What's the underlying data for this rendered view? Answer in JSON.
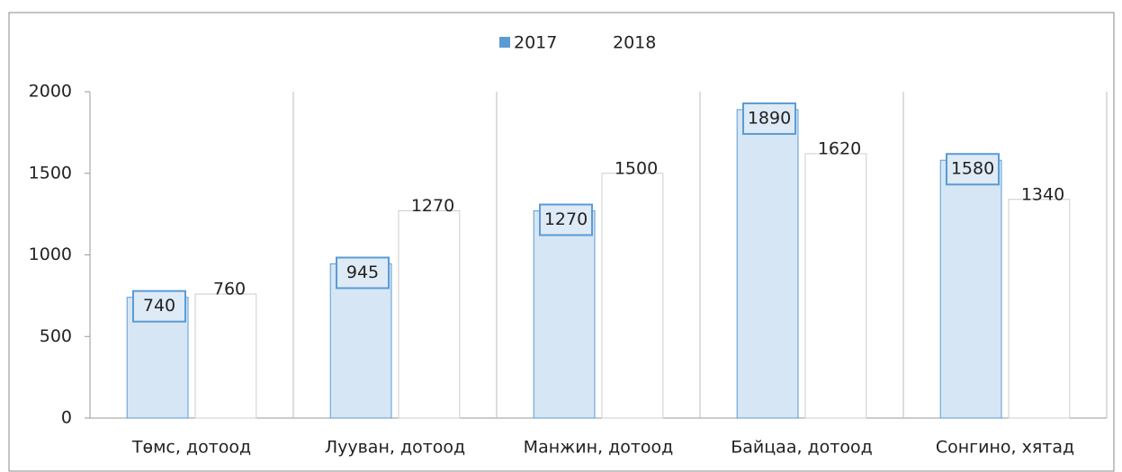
{
  "chart_data": {
    "type": "bar",
    "categories": [
      "Төмс, дотоод",
      "Лууван, дотоод",
      "Манжин, дотоод",
      "Байцаа, дотоод",
      "Сонгино, хятад"
    ],
    "series": [
      {
        "name": "2017",
        "color": "#5b9bd5",
        "values": [
          740,
          945,
          1270,
          1890,
          1580
        ]
      },
      {
        "name": "2018",
        "color": "#ffffff",
        "values": [
          760,
          1270,
          1500,
          1620,
          1340
        ]
      }
    ],
    "ylim": [
      0,
      2000
    ],
    "yticks": [
      0,
      500,
      1000,
      1500,
      2000
    ],
    "grid": true,
    "legend": "top"
  }
}
